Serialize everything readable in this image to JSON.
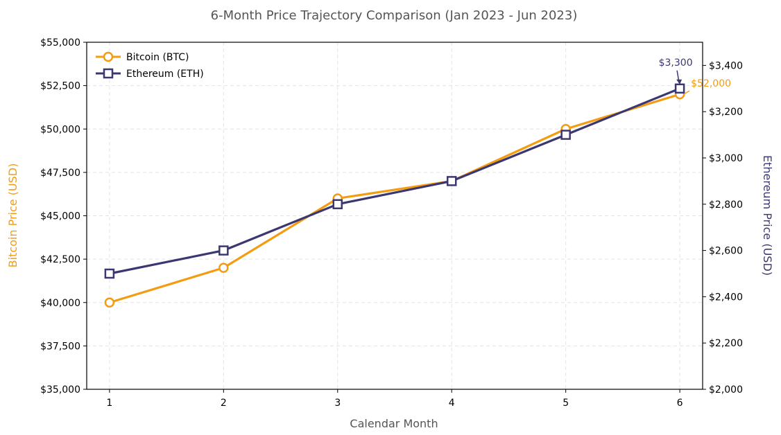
{
  "chart_data": {
    "type": "line",
    "title": "6-Month Price Trajectory Comparison (Jan 2023 - Jun 2023)",
    "xlabel": "Calendar Month",
    "ylabel_left": "Bitcoin Price (USD)",
    "ylabel_right": "Ethereum Price (USD)",
    "x": [
      1,
      2,
      3,
      4,
      5,
      6
    ],
    "x_tick_labels": [
      "1",
      "2",
      "3",
      "4",
      "5",
      "6"
    ],
    "xlim": [
      0.8,
      6.2
    ],
    "ylim_left": [
      35000,
      55000
    ],
    "ylim_right": [
      2000,
      3500
    ],
    "left_ticks": [
      35000,
      37500,
      40000,
      42500,
      45000,
      47500,
      50000,
      52500,
      55000
    ],
    "left_tick_labels": [
      "$35,000",
      "$37,500",
      "$40,000",
      "$42,500",
      "$45,000",
      "$47,500",
      "$50,000",
      "$52,500",
      "$55,000"
    ],
    "right_ticks": [
      2000,
      2200,
      2400,
      2600,
      2800,
      3000,
      3200,
      3400
    ],
    "right_tick_labels": [
      "$2,000",
      "$2,200",
      "$2,400",
      "$2,600",
      "$2,800",
      "$3,000",
      "$3,200",
      "$3,400"
    ],
    "grid": true,
    "legend_position": "top-left",
    "series": [
      {
        "name": "Bitcoin (BTC)",
        "axis": "left",
        "marker": "circle",
        "color": "#F39C12",
        "values": [
          40000,
          42000,
          46000,
          47000,
          50000,
          52000
        ],
        "end_label": "$52,000"
      },
      {
        "name": "Ethereum (ETH)",
        "axis": "right",
        "marker": "square",
        "color": "#3B3770",
        "values": [
          2500,
          2600,
          2800,
          2900,
          3100,
          3300
        ],
        "end_label": "$3,300"
      }
    ]
  }
}
